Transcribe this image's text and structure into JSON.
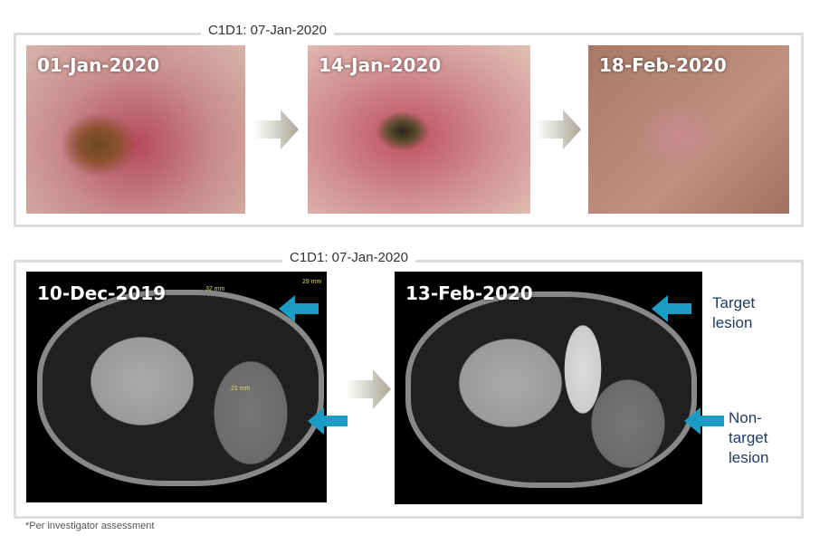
{
  "top_panel": {
    "label": "C1D1: 07-Jan-2020",
    "photos": [
      {
        "date": "01-Jan-2020"
      },
      {
        "date": "14-Jan-2020"
      },
      {
        "date": "18-Feb-2020"
      }
    ]
  },
  "bottom_panel": {
    "label": "C1D1: 07-Jan-2020",
    "scans": [
      {
        "date": "10-Dec-2019",
        "measurements": [
          "32 mm",
          "29 mm",
          "21 mm"
        ]
      },
      {
        "date": "13-Feb-2020"
      }
    ],
    "annotations": {
      "target": "Target lesion",
      "nontarget_1": "Non-",
      "nontarget_2": "target",
      "nontarget_3": "lesion"
    }
  },
  "footnote": "*Per investigator assessment",
  "colors": {
    "panel_border": "#dcdcdc",
    "arrow_blue": "#1a9cc4",
    "arrow_gray": "#b9b7a8",
    "annotation_text": "#1f3a5f"
  }
}
